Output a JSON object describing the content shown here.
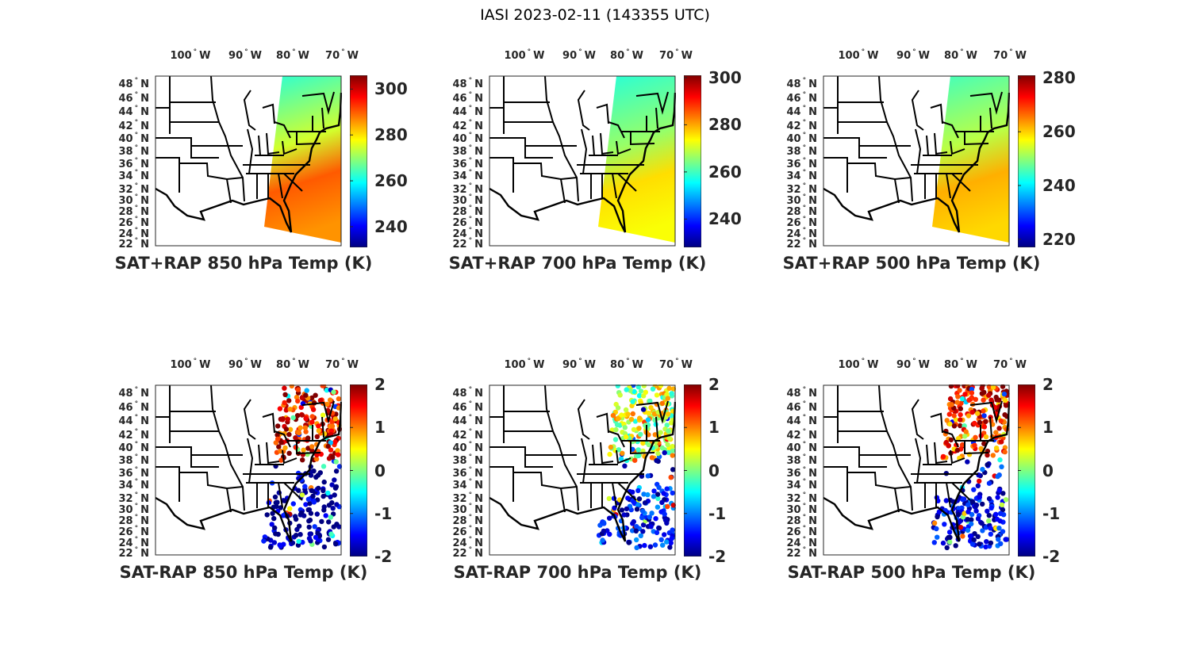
{
  "figure_title": "IASI 2023-02-11 (143355 UTC)",
  "chart_data": [
    {
      "type": "heatmap",
      "title": "SAT+RAP 850 hPa Temp (K)",
      "clim": [
        231,
        306
      ],
      "cbar_ticks": [
        "240",
        "260",
        "280",
        "300"
      ],
      "cbar_values": [
        240,
        260,
        280,
        300
      ],
      "field": "continuous",
      "field_range": [
        262,
        290
      ]
    },
    {
      "type": "heatmap",
      "title": "SAT+RAP 700 hPa Temp (K)",
      "clim": [
        228,
        301
      ],
      "cbar_ticks": [
        "240",
        "260",
        "280",
        "300"
      ],
      "cbar_values": [
        240,
        260,
        280,
        300
      ],
      "field": "continuous",
      "field_range": [
        258,
        276
      ]
    },
    {
      "type": "heatmap",
      "title": "SAT+RAP 500 hPa Temp (K)",
      "clim": [
        217,
        281
      ],
      "cbar_ticks": [
        "220",
        "240",
        "260",
        "280"
      ],
      "cbar_values": [
        220,
        240,
        260,
        280
      ],
      "field": "continuous",
      "field_range": [
        245,
        262
      ]
    },
    {
      "type": "heatmap",
      "title": "SAT-RAP 850 hPa Temp (K)",
      "clim": [
        -2,
        2
      ],
      "cbar_ticks": [
        "-2",
        "-1",
        "0",
        "1",
        "2"
      ],
      "cbar_values": [
        -2,
        -1,
        0,
        1,
        2
      ],
      "field": "scatter",
      "north_mean": 1.6,
      "south_mean": -1.9
    },
    {
      "type": "heatmap",
      "title": "SAT-RAP 700 hPa Temp (K)",
      "clim": [
        -2,
        2
      ],
      "cbar_ticks": [
        "-2",
        "-1",
        "0",
        "1",
        "2"
      ],
      "cbar_values": [
        -2,
        -1,
        0,
        1,
        2
      ],
      "field": "scatter",
      "north_mean": 0.3,
      "south_mean": -1.5
    },
    {
      "type": "heatmap",
      "title": "SAT-RAP 500 hPa Temp (K)",
      "clim": [
        -2,
        2
      ],
      "cbar_ticks": [
        "-2",
        "-1",
        "0",
        "1",
        "2"
      ],
      "cbar_values": [
        -2,
        -1,
        0,
        1,
        2
      ],
      "field": "scatter",
      "north_mean": 1.4,
      "south_mean": -1.6
    }
  ],
  "lon_ticks": [
    "100",
    "90",
    "80",
    "70"
  ],
  "lon_suffix": "W",
  "lat_ticks": [
    "48",
    "46",
    "44",
    "42",
    "40",
    "38",
    "36",
    "34",
    "32",
    "30",
    "28",
    "26",
    "24",
    "22"
  ],
  "lat_suffix": "N",
  "degree": "°"
}
